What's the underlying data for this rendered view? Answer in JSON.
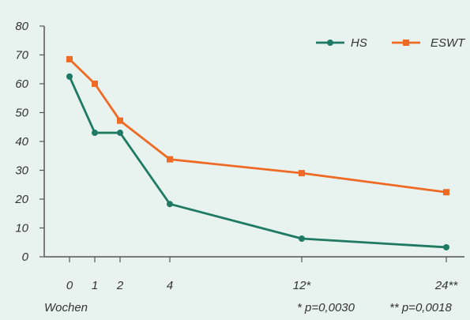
{
  "chart_data": {
    "type": "line",
    "xlabel": "Wochen",
    "ylabel": "",
    "x": [
      0,
      1,
      2,
      4,
      12,
      24
    ],
    "x_tick_labels": [
      "0",
      "1",
      "2",
      "4",
      "12*",
      "24**"
    ],
    "ylim": [
      0,
      80
    ],
    "y_ticks": [
      0,
      10,
      20,
      30,
      40,
      50,
      60,
      70,
      80
    ],
    "grid": false,
    "legend_position": "top-right",
    "series": [
      {
        "name": "HS",
        "color": "#1f7a63",
        "marker": "circle",
        "values": [
          62.5,
          43,
          43,
          18.3,
          6.3,
          3.3
        ]
      },
      {
        "name": "ESWT",
        "color": "#ef6a25",
        "marker": "square",
        "values": [
          68.5,
          60,
          47.2,
          33.8,
          29,
          22.4
        ]
      }
    ],
    "annotations": [
      "* p=0,0030",
      "** p=0,0018"
    ]
  }
}
